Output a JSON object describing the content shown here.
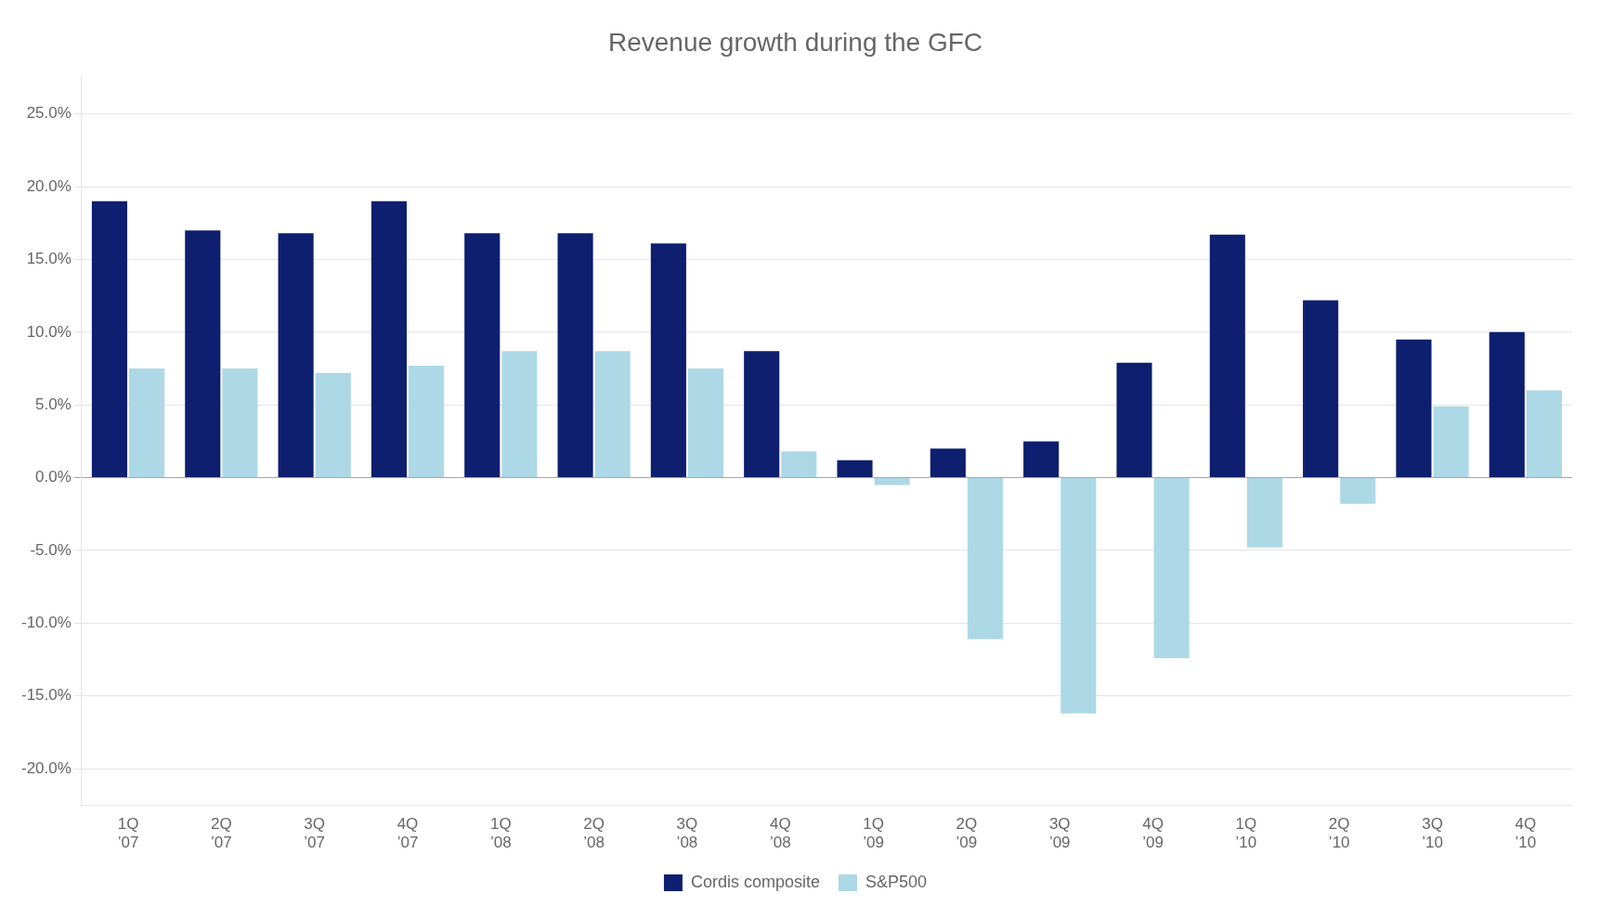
{
  "chart_data": {
    "type": "bar",
    "title": "Revenue growth during the GFC",
    "categories": [
      "1Q\n’07",
      "2Q\n’07",
      "3Q\n’07",
      "4Q\n’07",
      "1Q\n’08",
      "2Q\n’08",
      "3Q\n’08",
      "4Q\n’08",
      "1Q\n’09",
      "2Q\n’09",
      "3Q\n’09",
      "4Q\n’09",
      "1Q\n’10",
      "2Q\n’10",
      "3Q\n’10",
      "4Q\n’10"
    ],
    "series": [
      {
        "name": "Cordis composite",
        "color": "#0d1f6e",
        "values": [
          0.19,
          0.17,
          0.168,
          0.19,
          0.168,
          0.168,
          0.161,
          0.087,
          0.012,
          0.02,
          0.025,
          0.079,
          0.167,
          0.122,
          0.095,
          0.1
        ]
      },
      {
        "name": "S&P500",
        "color": "#add8e6",
        "values": [
          0.075,
          0.075,
          0.072,
          0.077,
          0.087,
          0.087,
          0.075,
          0.018,
          -0.005,
          -0.111,
          -0.162,
          -0.124,
          -0.048,
          -0.018,
          0.049,
          0.06
        ]
      }
    ],
    "ylim": [
      -0.225,
      0.275
    ],
    "yticks": [
      {
        "value": -0.2,
        "label": "-20.0%"
      },
      {
        "value": -0.15,
        "label": "-15.0%"
      },
      {
        "value": -0.1,
        "label": "-10.0%"
      },
      {
        "value": -0.05,
        "label": "-5.0%"
      },
      {
        "value": 0.0,
        "label": "0.0%"
      },
      {
        "value": 0.05,
        "label": "5.0%"
      },
      {
        "value": 0.1,
        "label": "10.0%"
      },
      {
        "value": 0.15,
        "label": "15.0%"
      },
      {
        "value": 0.2,
        "label": "20.0%"
      },
      {
        "value": 0.25,
        "label": "25.0%"
      }
    ],
    "grid": true,
    "legend": "bottom"
  }
}
